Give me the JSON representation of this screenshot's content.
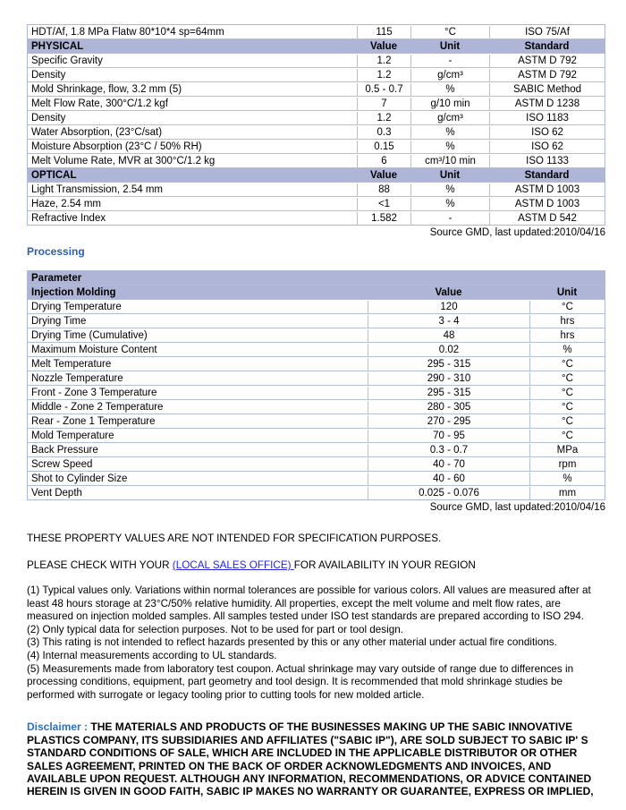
{
  "colors": {
    "header_bg": "#aeb5d6",
    "table_border": "#b4bdd8",
    "heading_blue": "#2b5db0",
    "disclaimer_blue": "#2f6fc4",
    "link_blue": "#2323e0"
  },
  "properties_table": {
    "rows": [
      {
        "type": "data",
        "cells": [
          "HDT/Af, 1.8 MPa Flatw 80*10*4 sp=64mm",
          "115",
          "°C",
          "ISO 75/Af"
        ]
      },
      {
        "type": "header",
        "cells": [
          "PHYSICAL",
          "Value",
          "Unit",
          "Standard"
        ]
      },
      {
        "type": "data",
        "cells": [
          "Specific Gravity",
          "1.2",
          "-",
          "ASTM D 792"
        ]
      },
      {
        "type": "data",
        "cells": [
          "Density",
          "1.2",
          "g/cm³",
          "ASTM D 792"
        ]
      },
      {
        "type": "data",
        "cells": [
          "Mold Shrinkage, flow, 3.2 mm (5)",
          "0.5 - 0.7",
          "%",
          "SABIC Method"
        ]
      },
      {
        "type": "data",
        "cells": [
          "Melt Flow Rate, 300°C/1.2 kgf",
          "7",
          "g/10 min",
          "ASTM D 1238"
        ]
      },
      {
        "type": "data",
        "cells": [
          "Density",
          "1.2",
          "g/cm³",
          "ISO 1183"
        ]
      },
      {
        "type": "data",
        "cells": [
          "Water Absorption, (23°C/sat)",
          "0.3",
          "%",
          "ISO 62"
        ]
      },
      {
        "type": "data",
        "cells": [
          "Moisture Absorption (23°C / 50% RH)",
          "0.15",
          "%",
          "ISO 62"
        ]
      },
      {
        "type": "data",
        "cells": [
          "Melt Volume Rate, MVR at 300°C/1.2 kg",
          "6",
          "cm³/10 min",
          "ISO 1133"
        ]
      },
      {
        "type": "header",
        "cells": [
          "OPTICAL",
          "Value",
          "Unit",
          "Standard"
        ]
      },
      {
        "type": "data",
        "cells": [
          "Light Transmission, 2.54 mm",
          "88",
          "%",
          "ASTM D 1003"
        ]
      },
      {
        "type": "data",
        "cells": [
          "Haze, 2.54 mm",
          "<1",
          "%",
          "ASTM D 1003"
        ]
      },
      {
        "type": "data",
        "cells": [
          "Refractive Index",
          "1.582",
          "-",
          "ASTM D 542"
        ]
      }
    ],
    "source_note": "Source GMD, last updated:2010/04/16"
  },
  "processing_section": {
    "heading": "Processing",
    "table": {
      "header_row1": "Parameter",
      "header_row2": [
        "Injection Molding",
        "Value",
        "Unit"
      ],
      "rows": [
        [
          "Drying Temperature",
          "120",
          "°C"
        ],
        [
          "Drying Time",
          "3 - 4",
          "hrs"
        ],
        [
          "Drying Time (Cumulative)",
          "48",
          "hrs"
        ],
        [
          "Maximum Moisture Content",
          "0.02",
          "%"
        ],
        [
          "Melt Temperature",
          "295 - 315",
          "°C"
        ],
        [
          "Nozzle Temperature",
          "290 - 310",
          "°C"
        ],
        [
          "Front - Zone 3 Temperature",
          "295 - 315",
          "°C"
        ],
        [
          "Middle - Zone 2 Temperature",
          "280 - 305",
          "°C"
        ],
        [
          "Rear - Zone 1 Temperature",
          "270 - 295",
          "°C"
        ],
        [
          "Mold Temperature",
          "70 - 95",
          "°C"
        ],
        [
          "Back Pressure",
          "0.3 - 0.7",
          "MPa"
        ],
        [
          "Screw Speed",
          "40 - 70",
          "rpm"
        ],
        [
          "Shot to Cylinder Size",
          "40 - 60",
          "%"
        ],
        [
          "Vent Depth",
          "0.025 - 0.076",
          "mm"
        ]
      ],
      "source_note": "Source GMD, last updated:2010/04/16"
    }
  },
  "notes": {
    "spec_line": "THESE PROPERTY VALUES ARE NOT INTENDED FOR SPECIFICATION PURPOSES.",
    "availability_prefix": "PLEASE CHECK WITH YOUR ",
    "availability_link": "(LOCAL SALES OFFICE) ",
    "availability_suffix": "FOR AVAILABILITY IN YOUR REGION",
    "footnotes": [
      "(1) Typical values only. Variations within normal tolerances are possible for various colors. All values are measured after at least 48 hours storage at 23°C/50% relative humidity. All properties, except the melt volume and melt flow rates, are measured on injection molded samples. All samples tested under ISO test standards are prepared according to ISO 294.",
      "(2) Only typical data for selection purposes. Not to be used for part or tool design.",
      "(3) This rating is not intended to reflect hazards presented by this or any other material under actual fire conditions.",
      "(4) Internal measurements according to UL standards.",
      "(5) Measurements made from laboratory test coupon. Actual shrinkage may vary outside of range due to differences in processing conditions, equipment, part geometry and tool design. It is recommended that mold shrinkage studies be performed with surrogate or legacy tooling prior to cutting tools for new molded article."
    ]
  },
  "disclaimer": {
    "label": "Disclaimer :",
    "text": "THE MATERIALS AND PRODUCTS OF THE BUSINESSES MAKING UP THE SABIC INNOVATIVE PLASTICS COMPANY, ITS SUBSIDIARIES AND AFFILIATES (\"SABIC IP\"), ARE SOLD SUBJECT TO SABIC IP' S STANDARD CONDITIONS OF SALE, WHICH ARE INCLUDED IN THE APPLICABLE DISTRIBUTOR OR OTHER SALES AGREEMENT, PRINTED ON THE BACK OF ORDER ACKNOWLEDGMENTS AND INVOICES, AND AVAILABLE UPON REQUEST. ALTHOUGH ANY INFORMATION, RECOMMENDATIONS, OR ADVICE CONTAINED HEREIN IS GIVEN IN GOOD FAITH, SABIC IP MAKES NO WARRANTY OR GUARANTEE, EXPRESS OR IMPLIED,"
  }
}
